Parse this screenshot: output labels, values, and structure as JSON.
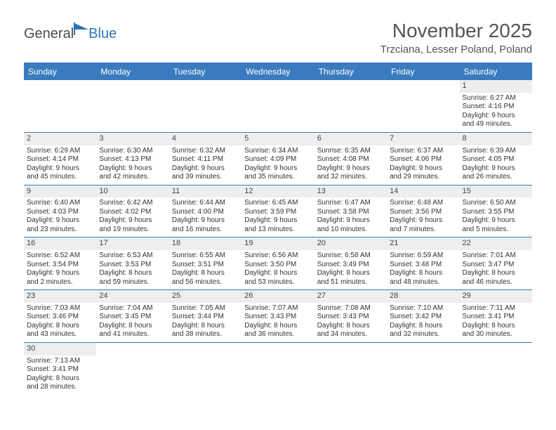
{
  "logo": {
    "text1": "General",
    "text2": "Blue"
  },
  "title": "November 2025",
  "location": "Trzciana, Lesser Poland, Poland",
  "colors": {
    "header_bg": "#3a7bbf",
    "header_text": "#ffffff",
    "row_border": "#3a7bbf",
    "daynum_bg": "#eeeeee",
    "body_text": "#333333",
    "title_text": "#555555",
    "logo_gray": "#4b4b4b",
    "logo_blue": "#2f74b5",
    "page_bg": "#ffffff"
  },
  "day_headers": [
    "Sunday",
    "Monday",
    "Tuesday",
    "Wednesday",
    "Thursday",
    "Friday",
    "Saturday"
  ],
  "weeks": [
    [
      null,
      null,
      null,
      null,
      null,
      null,
      {
        "n": "1",
        "sr": "Sunrise: 6:27 AM",
        "ss": "Sunset: 4:16 PM",
        "d1": "Daylight: 9 hours",
        "d2": "and 49 minutes."
      }
    ],
    [
      {
        "n": "2",
        "sr": "Sunrise: 6:29 AM",
        "ss": "Sunset: 4:14 PM",
        "d1": "Daylight: 9 hours",
        "d2": "and 45 minutes."
      },
      {
        "n": "3",
        "sr": "Sunrise: 6:30 AM",
        "ss": "Sunset: 4:13 PM",
        "d1": "Daylight: 9 hours",
        "d2": "and 42 minutes."
      },
      {
        "n": "4",
        "sr": "Sunrise: 6:32 AM",
        "ss": "Sunset: 4:11 PM",
        "d1": "Daylight: 9 hours",
        "d2": "and 39 minutes."
      },
      {
        "n": "5",
        "sr": "Sunrise: 6:34 AM",
        "ss": "Sunset: 4:09 PM",
        "d1": "Daylight: 9 hours",
        "d2": "and 35 minutes."
      },
      {
        "n": "6",
        "sr": "Sunrise: 6:35 AM",
        "ss": "Sunset: 4:08 PM",
        "d1": "Daylight: 9 hours",
        "d2": "and 32 minutes."
      },
      {
        "n": "7",
        "sr": "Sunrise: 6:37 AM",
        "ss": "Sunset: 4:06 PM",
        "d1": "Daylight: 9 hours",
        "d2": "and 29 minutes."
      },
      {
        "n": "8",
        "sr": "Sunrise: 6:39 AM",
        "ss": "Sunset: 4:05 PM",
        "d1": "Daylight: 9 hours",
        "d2": "and 26 minutes."
      }
    ],
    [
      {
        "n": "9",
        "sr": "Sunrise: 6:40 AM",
        "ss": "Sunset: 4:03 PM",
        "d1": "Daylight: 9 hours",
        "d2": "and 23 minutes."
      },
      {
        "n": "10",
        "sr": "Sunrise: 6:42 AM",
        "ss": "Sunset: 4:02 PM",
        "d1": "Daylight: 9 hours",
        "d2": "and 19 minutes."
      },
      {
        "n": "11",
        "sr": "Sunrise: 6:44 AM",
        "ss": "Sunset: 4:00 PM",
        "d1": "Daylight: 9 hours",
        "d2": "and 16 minutes."
      },
      {
        "n": "12",
        "sr": "Sunrise: 6:45 AM",
        "ss": "Sunset: 3:59 PM",
        "d1": "Daylight: 9 hours",
        "d2": "and 13 minutes."
      },
      {
        "n": "13",
        "sr": "Sunrise: 6:47 AM",
        "ss": "Sunset: 3:58 PM",
        "d1": "Daylight: 9 hours",
        "d2": "and 10 minutes."
      },
      {
        "n": "14",
        "sr": "Sunrise: 6:48 AM",
        "ss": "Sunset: 3:56 PM",
        "d1": "Daylight: 9 hours",
        "d2": "and 7 minutes."
      },
      {
        "n": "15",
        "sr": "Sunrise: 6:50 AM",
        "ss": "Sunset: 3:55 PM",
        "d1": "Daylight: 9 hours",
        "d2": "and 5 minutes."
      }
    ],
    [
      {
        "n": "16",
        "sr": "Sunrise: 6:52 AM",
        "ss": "Sunset: 3:54 PM",
        "d1": "Daylight: 9 hours",
        "d2": "and 2 minutes."
      },
      {
        "n": "17",
        "sr": "Sunrise: 6:53 AM",
        "ss": "Sunset: 3:53 PM",
        "d1": "Daylight: 8 hours",
        "d2": "and 59 minutes."
      },
      {
        "n": "18",
        "sr": "Sunrise: 6:55 AM",
        "ss": "Sunset: 3:51 PM",
        "d1": "Daylight: 8 hours",
        "d2": "and 56 minutes."
      },
      {
        "n": "19",
        "sr": "Sunrise: 6:56 AM",
        "ss": "Sunset: 3:50 PM",
        "d1": "Daylight: 8 hours",
        "d2": "and 53 minutes."
      },
      {
        "n": "20",
        "sr": "Sunrise: 6:58 AM",
        "ss": "Sunset: 3:49 PM",
        "d1": "Daylight: 8 hours",
        "d2": "and 51 minutes."
      },
      {
        "n": "21",
        "sr": "Sunrise: 6:59 AM",
        "ss": "Sunset: 3:48 PM",
        "d1": "Daylight: 8 hours",
        "d2": "and 48 minutes."
      },
      {
        "n": "22",
        "sr": "Sunrise: 7:01 AM",
        "ss": "Sunset: 3:47 PM",
        "d1": "Daylight: 8 hours",
        "d2": "and 46 minutes."
      }
    ],
    [
      {
        "n": "23",
        "sr": "Sunrise: 7:03 AM",
        "ss": "Sunset: 3:46 PM",
        "d1": "Daylight: 8 hours",
        "d2": "and 43 minutes."
      },
      {
        "n": "24",
        "sr": "Sunrise: 7:04 AM",
        "ss": "Sunset: 3:45 PM",
        "d1": "Daylight: 8 hours",
        "d2": "and 41 minutes."
      },
      {
        "n": "25",
        "sr": "Sunrise: 7:05 AM",
        "ss": "Sunset: 3:44 PM",
        "d1": "Daylight: 8 hours",
        "d2": "and 38 minutes."
      },
      {
        "n": "26",
        "sr": "Sunrise: 7:07 AM",
        "ss": "Sunset: 3:43 PM",
        "d1": "Daylight: 8 hours",
        "d2": "and 36 minutes."
      },
      {
        "n": "27",
        "sr": "Sunrise: 7:08 AM",
        "ss": "Sunset: 3:43 PM",
        "d1": "Daylight: 8 hours",
        "d2": "and 34 minutes."
      },
      {
        "n": "28",
        "sr": "Sunrise: 7:10 AM",
        "ss": "Sunset: 3:42 PM",
        "d1": "Daylight: 8 hours",
        "d2": "and 32 minutes."
      },
      {
        "n": "29",
        "sr": "Sunrise: 7:11 AM",
        "ss": "Sunset: 3:41 PM",
        "d1": "Daylight: 8 hours",
        "d2": "and 30 minutes."
      }
    ],
    [
      {
        "n": "30",
        "sr": "Sunrise: 7:13 AM",
        "ss": "Sunset: 3:41 PM",
        "d1": "Daylight: 8 hours",
        "d2": "and 28 minutes."
      },
      null,
      null,
      null,
      null,
      null,
      null
    ]
  ]
}
